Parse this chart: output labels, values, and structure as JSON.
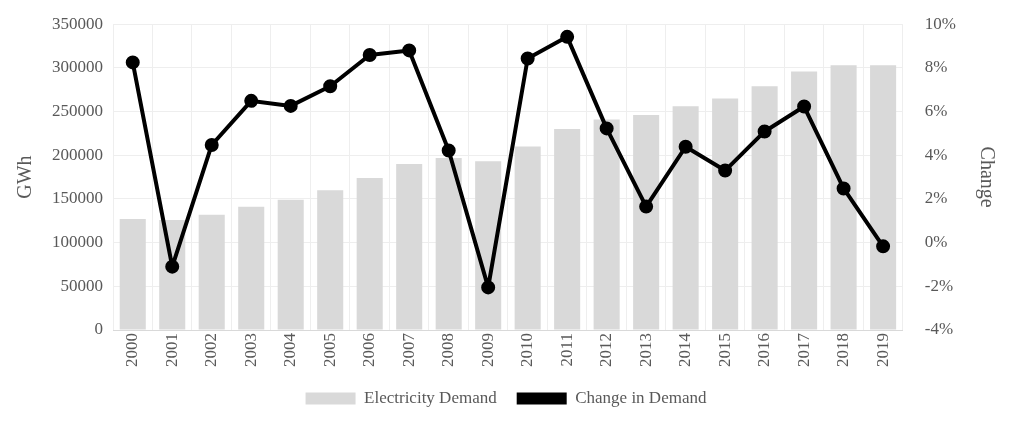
{
  "chart_data": {
    "type": "bar",
    "ylabel": "GWh",
    "y2label": "Change",
    "categories": [
      "2000",
      "2001",
      "2002",
      "2003",
      "2004",
      "2005",
      "2006",
      "2007",
      "2008",
      "2009",
      "2010",
      "2011",
      "2012",
      "2013",
      "2014",
      "2015",
      "2016",
      "2017",
      "2018",
      "2019"
    ],
    "series": [
      {
        "name": "Electricity Demand",
        "color": "#d9d9d9",
        "values": [
          127000,
          126000,
          132000,
          141000,
          149000,
          160000,
          174000,
          190000,
          197000,
          193000,
          210000,
          230000,
          241000,
          246000,
          256000,
          265000,
          279000,
          296000,
          303000,
          303000
        ]
      },
      {
        "name": "Change in Demand",
        "type": "line",
        "axis": "y2",
        "color": "#000000",
        "marker": "circle",
        "line_style": "solid",
        "values": [
          8.25,
          -1.1,
          4.47,
          6.49,
          6.26,
          7.16,
          8.59,
          8.8,
          4.22,
          -2.05,
          8.43,
          9.42,
          5.23,
          1.65,
          4.39,
          3.3,
          5.09,
          6.23,
          2.48,
          -0.17
        ]
      }
    ],
    "ylim": [
      0,
      350000
    ],
    "yticks": [
      0,
      50000,
      100000,
      150000,
      200000,
      250000,
      300000,
      350000
    ],
    "y2lim": [
      -4,
      10
    ],
    "y2ticks": [
      {
        "value": -4,
        "label": "-4%"
      },
      {
        "value": -2,
        "label": "-2%"
      },
      {
        "value": 0,
        "label": "0%"
      },
      {
        "value": 2,
        "label": "2%"
      },
      {
        "value": 4,
        "label": "4%"
      },
      {
        "value": 6,
        "label": "6%"
      },
      {
        "value": 8,
        "label": "8%"
      },
      {
        "value": 10,
        "label": "10%"
      }
    ],
    "grid": true,
    "legend": "bottom"
  }
}
